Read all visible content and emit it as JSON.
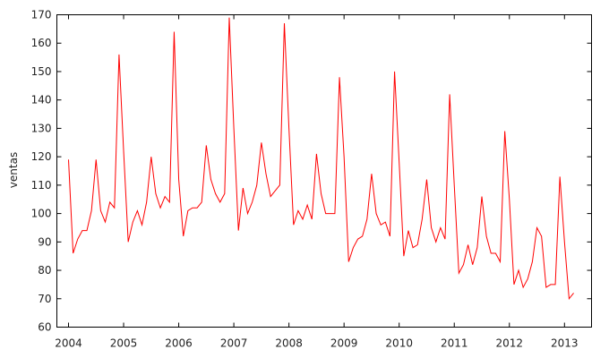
{
  "chart_data": {
    "type": "line",
    "title": "",
    "xlabel": "",
    "ylabel": "ventas",
    "ylim": [
      60,
      170
    ],
    "xlim": [
      "2004-01",
      "2013-03"
    ],
    "grid": false,
    "legend": "none",
    "x_ticks": [
      "2004",
      "2005",
      "2006",
      "2007",
      "2008",
      "2009",
      "2010",
      "2011",
      "2012",
      "2013"
    ],
    "y_ticks": [
      60,
      70,
      80,
      90,
      100,
      110,
      120,
      130,
      140,
      150,
      160,
      170
    ],
    "series": [
      {
        "color": "#ff0000",
        "start": "2004-01",
        "frequency": "monthly",
        "values": [
          119,
          86,
          91,
          94,
          94,
          101,
          119,
          101,
          97,
          104,
          102,
          156,
          122,
          90,
          97,
          101,
          96,
          104,
          120,
          107,
          102,
          106,
          104,
          164,
          112,
          92,
          101,
          102,
          102,
          104,
          124,
          112,
          107,
          104,
          107,
          169,
          130,
          94,
          109,
          100,
          104,
          110,
          125,
          114,
          106,
          108,
          110,
          167,
          130,
          96,
          101,
          98,
          103,
          98,
          121,
          107,
          100,
          100,
          100,
          148,
          120,
          83,
          88,
          91,
          92,
          98,
          114,
          100,
          96,
          97,
          92,
          150,
          118,
          85,
          94,
          88,
          89,
          98,
          112,
          95,
          90,
          95,
          91,
          142,
          110,
          79,
          82,
          89,
          82,
          88,
          106,
          92,
          86,
          86,
          83,
          129,
          105,
          75,
          80,
          74,
          77,
          83,
          95,
          92,
          74,
          75,
          75,
          113,
          90,
          70,
          72
        ]
      }
    ]
  }
}
